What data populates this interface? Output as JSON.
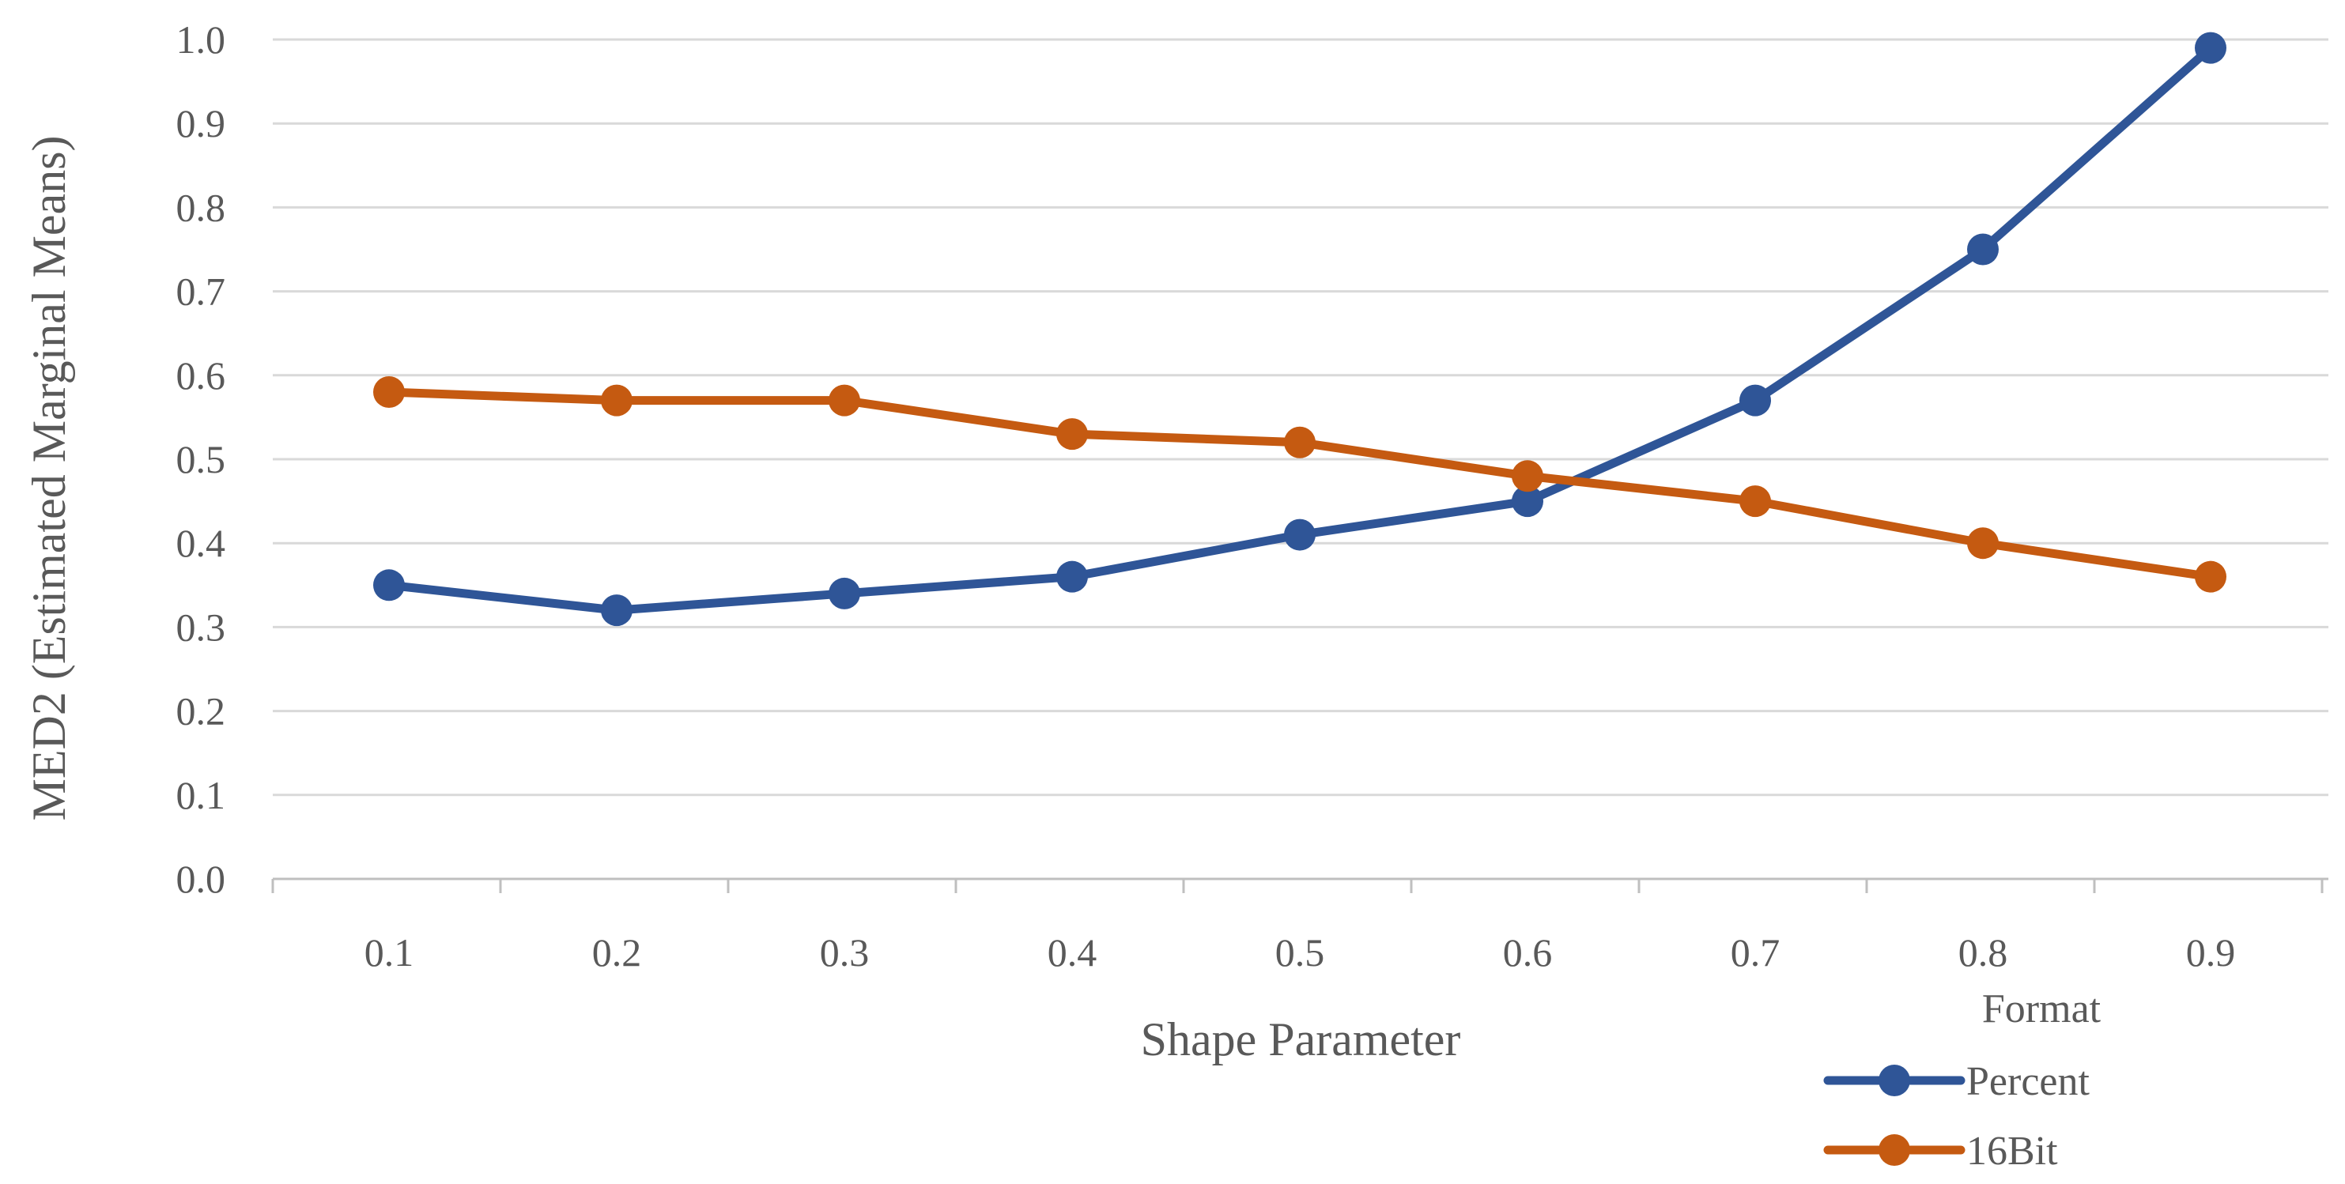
{
  "chart_data": {
    "type": "line",
    "xlabel": "Shape Parameter",
    "ylabel": "MED2 (Estimated Marginal Means)",
    "x": [
      "0.1",
      "0.2",
      "0.3",
      "0.4",
      "0.5",
      "0.6",
      "0.7",
      "0.8",
      "0.9"
    ],
    "yticks": [
      "0.0",
      "0.1",
      "0.2",
      "0.3",
      "0.4",
      "0.5",
      "0.6",
      "0.7",
      "0.8",
      "0.9",
      "1.0"
    ],
    "ylim": [
      0,
      1
    ],
    "grid": "horizontal",
    "legend": {
      "title": "Format",
      "position": "bottom-right"
    },
    "series": [
      {
        "name": "Percent",
        "color": "#2F5597",
        "values": [
          0.35,
          0.32,
          0.34,
          0.36,
          0.41,
          0.45,
          0.57,
          0.75,
          0.99
        ]
      },
      {
        "name": "16Bit",
        "color": "#C55A11",
        "values": [
          0.58,
          0.57,
          0.57,
          0.53,
          0.52,
          0.48,
          0.45,
          0.4,
          0.36
        ]
      }
    ]
  }
}
